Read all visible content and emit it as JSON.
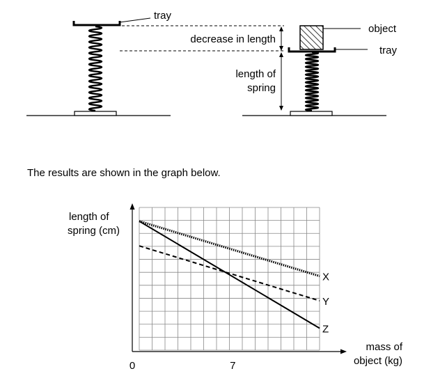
{
  "diagram": {
    "labels": {
      "tray_left": "tray",
      "decrease": "decrease in length",
      "object": "object",
      "tray_right": "tray",
      "length_of_spring_1": "length of",
      "length_of_spring_2": "spring"
    }
  },
  "caption": "The results are shown in the graph below.",
  "chart_data": {
    "type": "line",
    "ylabel": "length of spring (cm)",
    "ylabel_lines": [
      "length of",
      "spring (cm)"
    ],
    "xlabel": "mass of object (kg)",
    "xlabel_lines": [
      "mass of",
      "object (kg)"
    ],
    "x_tick_labels": [
      "0",
      "7"
    ],
    "x_ticks": [
      0,
      7
    ],
    "xlim": [
      0,
      13.5
    ],
    "ylim": [
      0,
      10.5
    ],
    "grid": true,
    "series": [
      {
        "name": "X",
        "style": "dotted",
        "x": [
          0,
          13.5
        ],
        "y": [
          9.5,
          5.5
        ]
      },
      {
        "name": "Y",
        "style": "dashed",
        "x": [
          0,
          13.5
        ],
        "y": [
          7.7,
          3.7
        ]
      },
      {
        "name": "Z",
        "style": "solid",
        "x": [
          0,
          13.5
        ],
        "y": [
          9.5,
          1.7
        ]
      }
    ]
  }
}
